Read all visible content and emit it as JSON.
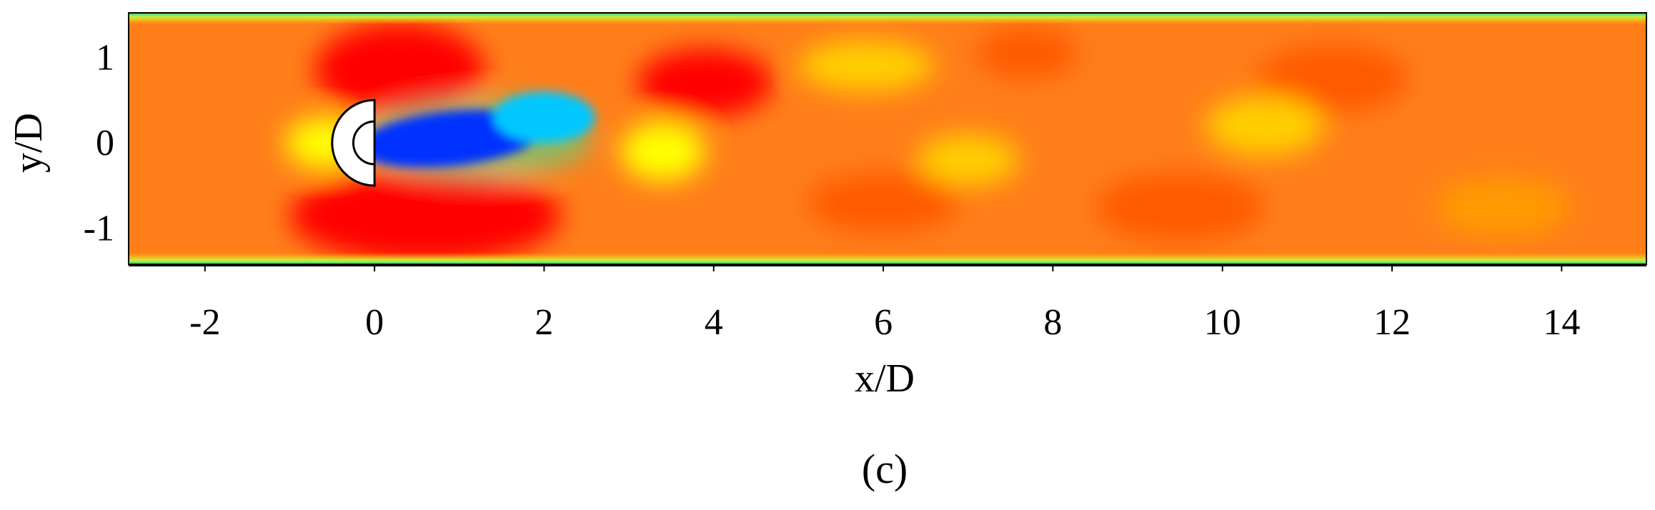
{
  "panel_label": "(c)",
  "chart_data": {
    "type": "heatmap",
    "title": "",
    "xlabel": "x/D",
    "ylabel": "y/D",
    "xlim": [
      -2.9,
      15.0
    ],
    "ylim": [
      -1.42,
      1.52
    ],
    "x_ticks": [
      -2,
      0,
      2,
      4,
      6,
      8,
      10,
      12,
      14
    ],
    "x_tick_labels": [
      "-2",
      "0",
      "2",
      "4",
      "6",
      "8",
      "10",
      "12",
      "14"
    ],
    "y_ticks": [
      1,
      0,
      -1
    ],
    "y_tick_labels": [
      "1",
      "0",
      "-1"
    ],
    "colormap": [
      "#0033ff",
      "#00c8ff",
      "#35e8a0",
      "#c8f03c",
      "#ffff00",
      "#ffcf00",
      "#ff9a00",
      "#ff5a00",
      "#ff0000"
    ],
    "background_color": "#ff7e1a",
    "wall_color": "#2fd08a",
    "body": {
      "shape": "semicircle",
      "center": [
        0,
        0
      ],
      "radius": 0.5,
      "inner_radius": 0.25,
      "flat_side": "downstream"
    },
    "features": [
      {
        "name": "wake-core",
        "x": 0.9,
        "y": 0.05,
        "rx": 1.1,
        "ry": 0.32,
        "level": 0.0
      },
      {
        "name": "wake-tail",
        "x": 2.0,
        "y": 0.3,
        "rx": 0.6,
        "ry": 0.3,
        "level": 0.15
      },
      {
        "name": "upper-shear-layer",
        "x": 0.3,
        "y": 0.85,
        "rx": 1.0,
        "ry": 0.55,
        "level": 1.0
      },
      {
        "name": "lower-shear-layer",
        "x": 0.6,
        "y": -0.85,
        "rx": 1.6,
        "ry": 0.55,
        "level": 1.0
      },
      {
        "name": "vortex-1",
        "x": 3.9,
        "y": 0.7,
        "rx": 0.8,
        "ry": 0.4,
        "level": 0.95
      },
      {
        "name": "vortex-2",
        "x": 6.0,
        "y": -0.7,
        "rx": 0.9,
        "ry": 0.35,
        "level": 0.9
      },
      {
        "name": "vortex-3",
        "x": 7.7,
        "y": 1.05,
        "rx": 0.6,
        "ry": 0.3,
        "level": 0.88
      },
      {
        "name": "vortex-4",
        "x": 9.5,
        "y": -0.75,
        "rx": 1.0,
        "ry": 0.4,
        "level": 0.85
      },
      {
        "name": "vortex-5",
        "x": 11.3,
        "y": 0.75,
        "rx": 0.9,
        "ry": 0.4,
        "level": 0.85
      },
      {
        "name": "vortex-6",
        "x": 13.3,
        "y": -0.75,
        "rx": 0.8,
        "ry": 0.35,
        "level": 0.78
      },
      {
        "name": "low-speed-pocket-1",
        "x": 3.4,
        "y": -0.1,
        "rx": 0.5,
        "ry": 0.35,
        "level": 0.5
      },
      {
        "name": "low-speed-pocket-2",
        "x": 5.8,
        "y": 0.9,
        "rx": 0.8,
        "ry": 0.3,
        "level": 0.58
      },
      {
        "name": "low-speed-pocket-3",
        "x": 7.0,
        "y": -0.2,
        "rx": 0.6,
        "ry": 0.3,
        "level": 0.6
      },
      {
        "name": "low-speed-pocket-4",
        "x": 10.5,
        "y": 0.2,
        "rx": 0.7,
        "ry": 0.35,
        "level": 0.6
      },
      {
        "name": "upstream-stagnation",
        "x": -0.6,
        "y": 0.0,
        "rx": 0.45,
        "ry": 0.3,
        "level": 0.45
      }
    ]
  }
}
